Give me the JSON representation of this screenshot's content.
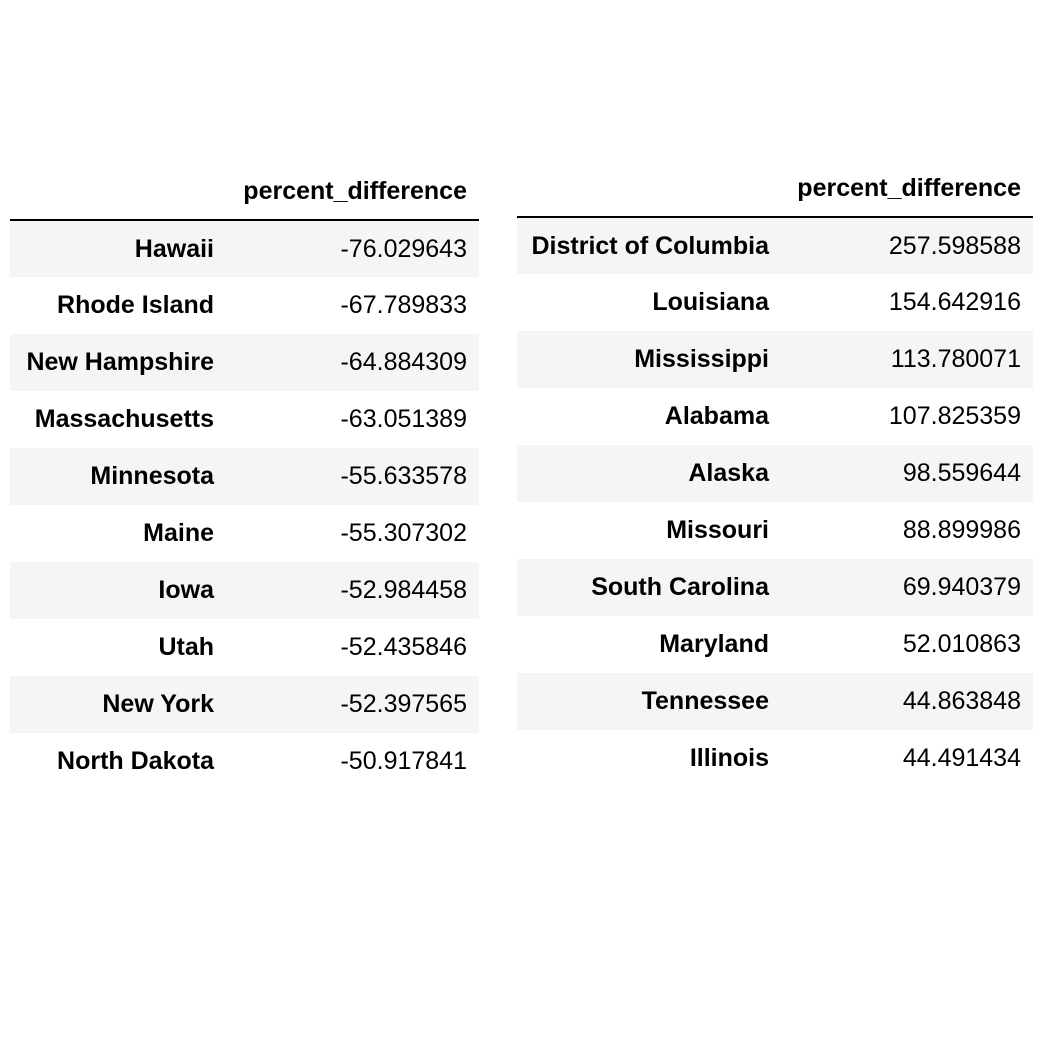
{
  "chart_data": [
    {
      "type": "table",
      "columns": [
        "percent_difference"
      ],
      "rows": [
        {
          "label": "Hawaii",
          "value": "-76.029643"
        },
        {
          "label": "Rhode Island",
          "value": "-67.789833"
        },
        {
          "label": "New Hampshire",
          "value": "-64.884309"
        },
        {
          "label": "Massachusetts",
          "value": "-63.051389"
        },
        {
          "label": "Minnesota",
          "value": "-55.633578"
        },
        {
          "label": "Maine",
          "value": "-55.307302"
        },
        {
          "label": "Iowa",
          "value": "-52.984458"
        },
        {
          "label": "Utah",
          "value": "-52.435846"
        },
        {
          "label": "New York",
          "value": "-52.397565"
        },
        {
          "label": "North Dakota",
          "value": "-50.917841"
        }
      ]
    },
    {
      "type": "table",
      "columns": [
        "percent_difference"
      ],
      "rows": [
        {
          "label": "District of Columbia",
          "value": "257.598588"
        },
        {
          "label": "Louisiana",
          "value": "154.642916"
        },
        {
          "label": "Mississippi",
          "value": "113.780071"
        },
        {
          "label": "Alabama",
          "value": "107.825359"
        },
        {
          "label": "Alaska",
          "value": "98.559644"
        },
        {
          "label": "Missouri",
          "value": "88.899986"
        },
        {
          "label": "South Carolina",
          "value": "69.940379"
        },
        {
          "label": "Maryland",
          "value": "52.010863"
        },
        {
          "label": "Tennessee",
          "value": "44.863848"
        },
        {
          "label": "Illinois",
          "value": "44.491434"
        }
      ]
    }
  ]
}
